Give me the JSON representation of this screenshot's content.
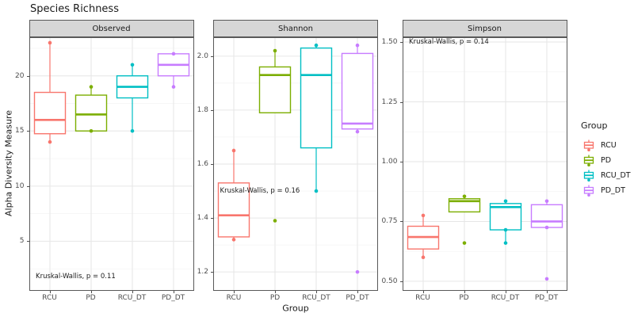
{
  "title": "Species Richness",
  "axes": {
    "y_title": "Alpha Diversity Measure",
    "x_title": "Group"
  },
  "legend": {
    "title": "Group",
    "items": [
      {
        "label": "RCU",
        "color": "#F8766D"
      },
      {
        "label": "PD",
        "color": "#7CAE00"
      },
      {
        "label": "RCU_DT",
        "color": "#00BFC4"
      },
      {
        "label": "PD_DT",
        "color": "#C77CFF"
      }
    ]
  },
  "chart_data": {
    "type": "boxplot",
    "faceted": true,
    "grid": "on",
    "legend_position": "right",
    "x_categories": [
      "RCU",
      "PD",
      "RCU_DT",
      "PD_DT"
    ],
    "group_colors": {
      "RCU": "#F8766D",
      "PD": "#7CAE00",
      "RCU_DT": "#00BFC4",
      "PD_DT": "#C77CFF"
    },
    "facets": [
      {
        "label": "Observed",
        "stat_label": "Kruskal-Wallis, p = 0.11",
        "stat_label_y": 1.8,
        "ylim": [
          0.5,
          23.5
        ],
        "ticks": [
          5,
          10,
          15,
          20
        ],
        "tick_labels": [
          "5",
          "10",
          "15",
          "20"
        ],
        "minor_ticks": [
          2.5,
          7.5,
          12.5,
          17.5,
          22.5
        ],
        "boxes": [
          {
            "group": "RCU",
            "whisker_low": 14,
            "q1": 14.75,
            "median": 16,
            "q3": 18.5,
            "whisker_high": 23,
            "points": [
              23,
              14
            ],
            "outliers": []
          },
          {
            "group": "PD",
            "whisker_low": 15,
            "q1": 15,
            "median": 16.5,
            "q3": 18.25,
            "whisker_high": 19,
            "points": [
              19,
              15
            ],
            "outliers": []
          },
          {
            "group": "RCU_DT",
            "whisker_low": 15,
            "q1": 18,
            "median": 19,
            "q3": 20,
            "whisker_high": 21,
            "points": [
              21,
              15
            ],
            "outliers": []
          },
          {
            "group": "PD_DT",
            "whisker_low": 19,
            "q1": 20,
            "median": 21,
            "q3": 22,
            "whisker_high": 22,
            "points": [
              22,
              19
            ],
            "outliers": []
          }
        ]
      },
      {
        "label": "Shannon",
        "stat_label": "Kruskal-Wallis, p = 0.16",
        "stat_label_y": 1.5,
        "ylim": [
          1.13,
          2.07
        ],
        "ticks": [
          1.2,
          1.4,
          1.6,
          1.8,
          2.0
        ],
        "tick_labels": [
          "1.2",
          "1.4",
          "1.6",
          "1.8",
          "2.0"
        ],
        "minor_ticks": [
          1.3,
          1.5,
          1.7,
          1.9
        ],
        "boxes": [
          {
            "group": "RCU",
            "whisker_low": 1.32,
            "q1": 1.33,
            "median": 1.41,
            "q3": 1.53,
            "whisker_high": 1.65,
            "points": [
              1.65,
              1.32
            ],
            "outliers": []
          },
          {
            "group": "PD",
            "whisker_low": 1.79,
            "q1": 1.79,
            "median": 1.93,
            "q3": 1.96,
            "whisker_high": 2.02,
            "points": [
              2.02
            ],
            "outliers": [
              1.39
            ]
          },
          {
            "group": "RCU_DT",
            "whisker_low": 1.5,
            "q1": 1.66,
            "median": 1.93,
            "q3": 2.03,
            "whisker_high": 2.04,
            "points": [
              2.04,
              1.5
            ],
            "outliers": []
          },
          {
            "group": "PD_DT",
            "whisker_low": 1.72,
            "q1": 1.73,
            "median": 1.75,
            "q3": 2.01,
            "whisker_high": 2.04,
            "points": [
              2.04,
              1.72
            ],
            "outliers": [
              1.2
            ]
          }
        ]
      },
      {
        "label": "Simpson",
        "stat_label": "Kruskal-Wallis, p = 0.14",
        "stat_label_y": 1.5,
        "ylim": [
          0.46,
          1.52
        ],
        "ticks": [
          0.5,
          0.75,
          1.0,
          1.25,
          1.5
        ],
        "tick_labels": [
          "0.50",
          "0.75",
          "1.00",
          "1.25",
          "1.50"
        ],
        "minor_ticks": [
          0.625,
          0.875,
          1.125,
          1.375
        ],
        "boxes": [
          {
            "group": "RCU",
            "whisker_low": 0.6,
            "q1": 0.635,
            "median": 0.685,
            "q3": 0.73,
            "whisker_high": 0.775,
            "points": [
              0.775,
              0.6
            ],
            "outliers": []
          },
          {
            "group": "PD",
            "whisker_low": 0.79,
            "q1": 0.79,
            "median": 0.835,
            "q3": 0.845,
            "whisker_high": 0.855,
            "points": [
              0.855
            ],
            "outliers": [
              0.66
            ]
          },
          {
            "group": "RCU_DT",
            "whisker_low": 0.66,
            "q1": 0.715,
            "median": 0.81,
            "q3": 0.825,
            "whisker_high": 0.835,
            "points": [
              0.835,
              0.715,
              0.66
            ],
            "outliers": []
          },
          {
            "group": "PD_DT",
            "whisker_low": 0.725,
            "q1": 0.725,
            "median": 0.75,
            "q3": 0.82,
            "whisker_high": 0.835,
            "points": [
              0.835,
              0.725
            ],
            "outliers": [
              0.51
            ]
          }
        ]
      }
    ]
  }
}
